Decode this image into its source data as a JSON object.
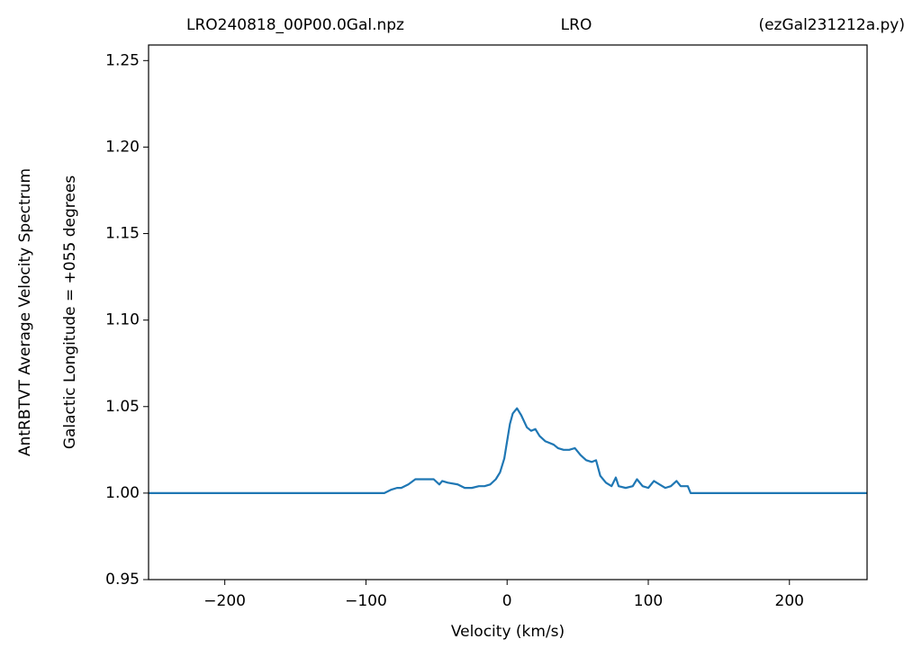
{
  "chart_data": {
    "type": "line",
    "title": [
      "LRO240818_00P00.0Gal.npz",
      "LRO",
      "(ezGal231212a.py)"
    ],
    "ylabel": [
      "AntRBTVT Average Velocity Spectrum",
      "Galactic Longitude = +055 degrees"
    ],
    "xlabel": "Velocity (km/s)",
    "xlim": [
      -254,
      255
    ],
    "ylim": [
      0.95,
      1.259
    ],
    "xticks": [
      {
        "value": -200,
        "label": "−200"
      },
      {
        "value": -100,
        "label": "−100"
      },
      0,
      100,
      200
    ],
    "yticks": [
      0.95,
      {
        "value": 1.0,
        "label": "1.00"
      },
      1.05,
      {
        "value": 1.1,
        "label": "1.10"
      },
      1.15,
      {
        "value": 1.2,
        "label": "1.20"
      },
      1.25
    ],
    "grid": false,
    "series": [
      {
        "color": "#1f77b4",
        "x": [
          -254,
          -87,
          -82,
          -78,
          -75,
          -70,
          -65,
          -62,
          -60,
          -55,
          -52,
          -48,
          -46,
          -42,
          -35,
          -30,
          -25,
          -20,
          -16,
          -12,
          -8,
          -5,
          -2,
          0,
          2,
          4,
          7,
          10,
          14,
          17,
          20,
          23,
          27,
          30,
          33,
          36,
          40,
          44,
          48,
          52,
          56,
          60,
          63,
          66,
          70,
          74,
          77,
          79,
          84,
          89,
          92,
          96,
          100,
          104,
          108,
          112,
          116,
          120,
          123,
          128,
          130,
          255
        ],
        "values": [
          1.0,
          1.0,
          1.002,
          1.003,
          1.003,
          1.005,
          1.008,
          1.008,
          1.008,
          1.008,
          1.008,
          1.005,
          1.007,
          1.006,
          1.005,
          1.003,
          1.003,
          1.004,
          1.004,
          1.005,
          1.008,
          1.012,
          1.02,
          1.03,
          1.04,
          1.046,
          1.049,
          1.045,
          1.038,
          1.036,
          1.037,
          1.033,
          1.03,
          1.029,
          1.028,
          1.026,
          1.025,
          1.025,
          1.026,
          1.022,
          1.019,
          1.018,
          1.019,
          1.01,
          1.006,
          1.004,
          1.009,
          1.004,
          1.003,
          1.004,
          1.008,
          1.004,
          1.003,
          1.007,
          1.005,
          1.003,
          1.004,
          1.007,
          1.004,
          1.004,
          1.0,
          1.0
        ]
      }
    ]
  }
}
